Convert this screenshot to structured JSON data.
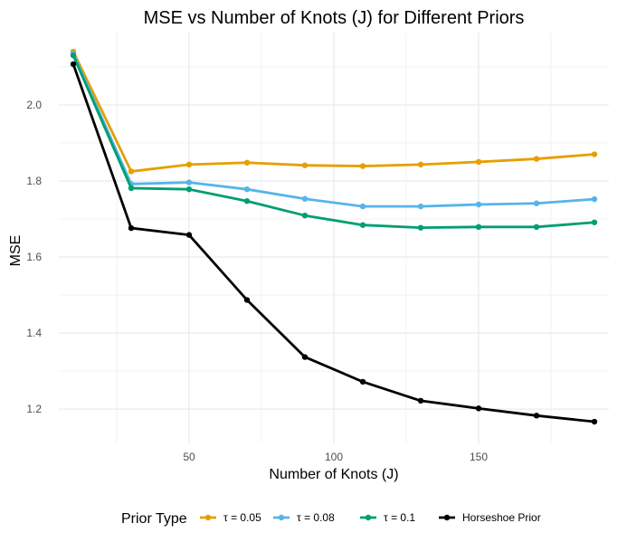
{
  "chart_data": {
    "type": "line",
    "title": "MSE vs Number of Knots (J) for Different Priors",
    "xlabel": "Number of Knots (J)",
    "ylabel": "MSE",
    "x": [
      10,
      30,
      50,
      70,
      90,
      110,
      130,
      150,
      170,
      190
    ],
    "xlim": [
      5,
      195
    ],
    "ylim": [
      1.11,
      2.19
    ],
    "x_ticks": [
      50,
      100,
      150
    ],
    "y_ticks": [
      1.2,
      1.4,
      1.6,
      1.8,
      2.0
    ],
    "x_tick_labels": [
      "50",
      "100",
      "150"
    ],
    "y_tick_labels": [
      "1.2",
      "1.4",
      "1.6",
      "1.8",
      "2.0"
    ],
    "grid": true,
    "legend": {
      "title": "Prior Type",
      "position": "bottom"
    },
    "series": [
      {
        "name": "τ = 0.05",
        "color": "#E69F00",
        "values": [
          2.14,
          1.825,
          1.843,
          1.848,
          1.841,
          1.839,
          1.843,
          1.85,
          1.858,
          1.87
        ]
      },
      {
        "name": "τ = 0.08",
        "color": "#56B4E9",
        "values": [
          2.135,
          1.792,
          1.796,
          1.778,
          1.753,
          1.733,
          1.733,
          1.738,
          1.741,
          1.752
        ]
      },
      {
        "name": "τ = 0.1",
        "color": "#009E73",
        "values": [
          2.13,
          1.781,
          1.778,
          1.747,
          1.709,
          1.684,
          1.677,
          1.679,
          1.679,
          1.691
        ]
      },
      {
        "name": "Horseshoe Prior",
        "color": "#000000",
        "values": [
          2.107,
          1.676,
          1.658,
          1.487,
          1.337,
          1.272,
          1.222,
          1.202,
          1.183,
          1.167
        ]
      }
    ]
  }
}
